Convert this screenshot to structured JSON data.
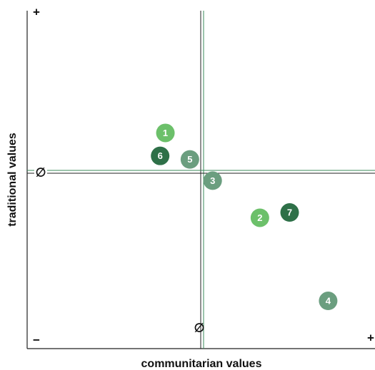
{
  "chart_data": {
    "type": "scatter",
    "xlabel": "communitarian values",
    "ylabel": "traditional values",
    "xlim": [
      -1,
      1
    ],
    "ylim": [
      -1,
      1
    ],
    "xticks": [
      {
        "value": 0,
        "label": "∅"
      },
      {
        "value": 1,
        "label": "+"
      }
    ],
    "yticks": [
      {
        "value": -1,
        "label": "−"
      },
      {
        "value": 0,
        "label": "∅"
      },
      {
        "value": 1,
        "label": "+"
      }
    ],
    "labels": [
      "1",
      "2",
      "3",
      "4",
      "5",
      "6",
      "7"
    ],
    "x": [
      -0.21,
      0.33,
      0.06,
      0.72,
      -0.07,
      -0.24,
      0.5
    ],
    "values": [
      0.22,
      -0.26,
      -0.05,
      -0.73,
      0.07,
      0.09,
      -0.23
    ],
    "colors": [
      "#6cc06a",
      "#6cc06a",
      "#6b9e7f",
      "#6b9e7f",
      "#6b9e7f",
      "#2e7048",
      "#2e7048"
    ]
  }
}
